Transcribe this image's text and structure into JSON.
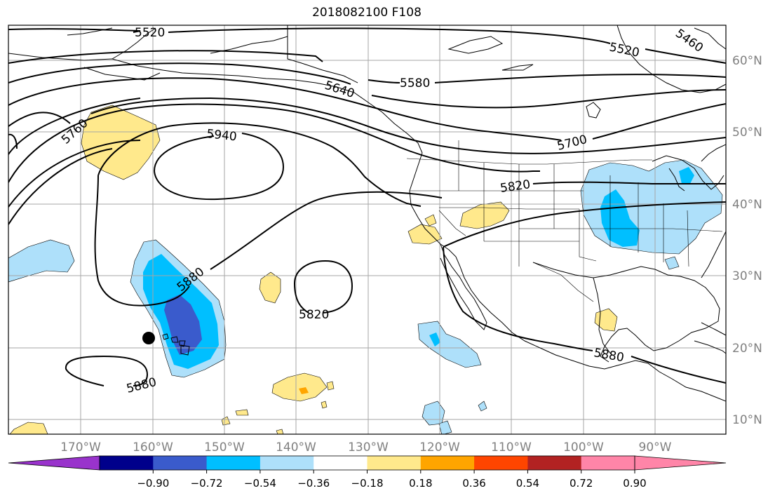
{
  "title": "2018082100 F108",
  "map": {
    "lon_labels": [
      "170°W",
      "160°W",
      "150°W",
      "140°W",
      "130°W",
      "120°W",
      "110°W",
      "100°W",
      "90°W"
    ],
    "lat_labels": [
      "60°N",
      "50°N",
      "40°N",
      "30°N",
      "20°N",
      "10°N"
    ],
    "contour_labels": [
      "5520",
      "5520",
      "5460",
      "5580",
      "5640",
      "5700",
      "5760",
      "5820",
      "5820",
      "5880",
      "5880",
      "5880",
      "5940"
    ],
    "dot_marker": "hawaii-dot-marker"
  },
  "colorbar": {
    "tick_labels": [
      "−0.90",
      "−0.72",
      "−0.54",
      "−0.36",
      "−0.18",
      "0.18",
      "0.36",
      "0.54",
      "0.72",
      "0.90"
    ],
    "colors": [
      "#9933cc",
      "#00008b",
      "#3a5bcc",
      "#00bfff",
      "#aee0fa",
      "#ffffff",
      "#ffe98c",
      "#ffa500",
      "#ff4500",
      "#b22222",
      "#ff85a8",
      "#ff85a8"
    ]
  }
}
